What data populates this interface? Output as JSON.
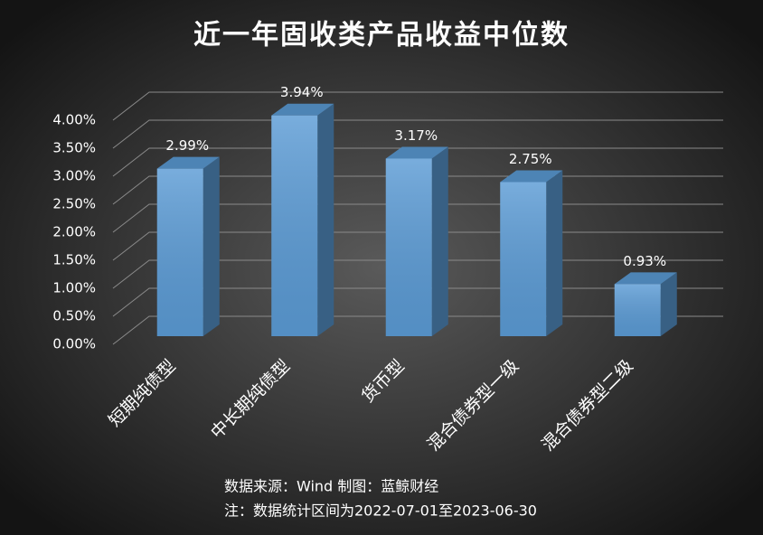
{
  "chart_data": {
    "type": "bar3d",
    "title": "近一年固收类产品收益中位数",
    "categories": [
      "短期纯债型",
      "中长期纯债型",
      "货币型",
      "混合债券型一级",
      "混合债券型二级"
    ],
    "values": [
      2.99,
      3.94,
      3.17,
      2.75,
      0.93
    ],
    "value_labels": [
      "2.99%",
      "3.94%",
      "3.17%",
      "2.75%",
      "0.93%"
    ],
    "color": "#5b9bd5",
    "ylim": [
      0,
      4
    ],
    "yticks": [
      {
        "value": 0,
        "label": "0.00%"
      },
      {
        "value": 0.5,
        "label": "0.50%"
      },
      {
        "value": 1,
        "label": "1.00%"
      },
      {
        "value": 1.5,
        "label": "1.50%"
      },
      {
        "value": 2,
        "label": "2.00%"
      },
      {
        "value": 2.5,
        "label": "2.50%"
      },
      {
        "value": 3,
        "label": "3.00%"
      },
      {
        "value": 3.5,
        "label": "3.50%"
      },
      {
        "value": 4,
        "label": "4.00%"
      }
    ],
    "grid": true,
    "source": "数据来源：Wind 制图：蓝鲸财经",
    "note": "注：数据统计区间为2022-07-01至2023-06-30"
  }
}
